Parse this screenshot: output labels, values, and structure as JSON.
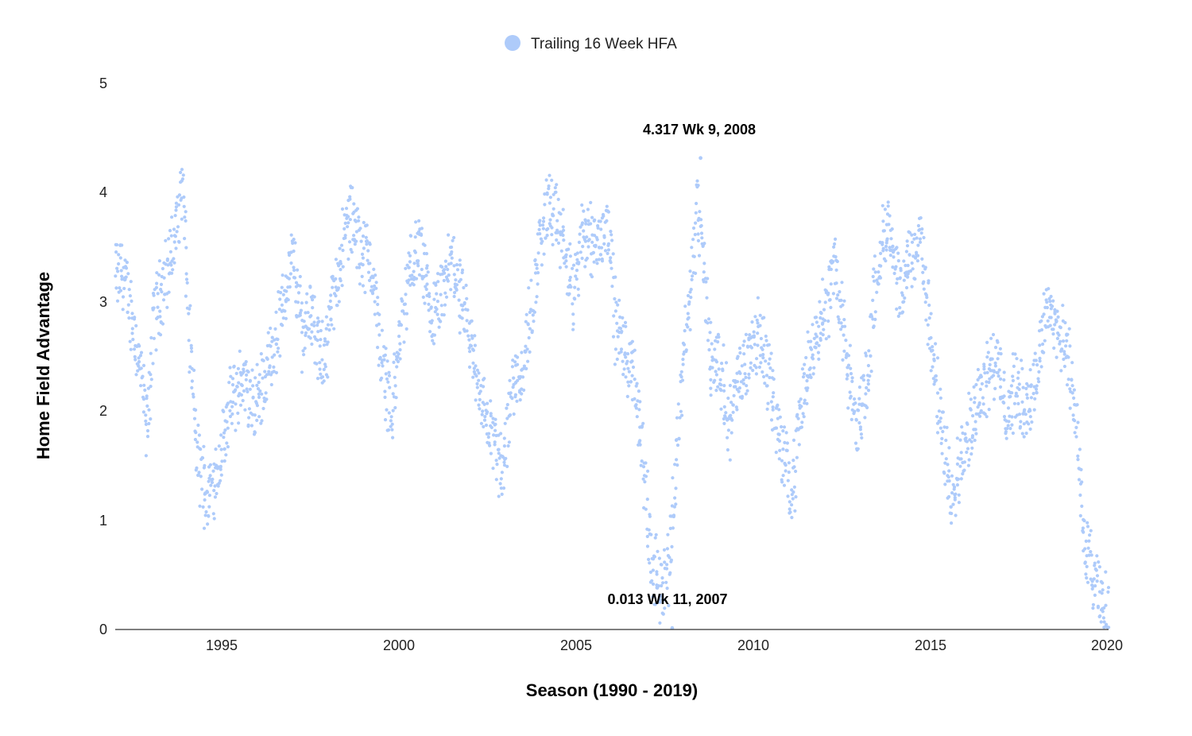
{
  "chart_data": {
    "type": "scatter",
    "xlabel": "Season (1990 - 2019)",
    "ylabel": "Home Field Advantage",
    "xlim": [
      1992,
      2020
    ],
    "ylim": [
      0,
      5
    ],
    "x_ticks": [
      "1995",
      "2000",
      "2005",
      "2010",
      "2015",
      "2020"
    ],
    "y_ticks": [
      "0",
      "1",
      "2",
      "3",
      "4",
      "5"
    ],
    "grid": false,
    "legend": {
      "position": "top-center",
      "entries": [
        "Trailing 16 Week HFA"
      ]
    },
    "series": [
      {
        "name": "Trailing 16 Week HFA",
        "color": "#aecbfa",
        "trend": [
          [
            1992.0,
            3.2
          ],
          [
            1992.2,
            3.3
          ],
          [
            1992.5,
            2.8
          ],
          [
            1992.7,
            2.4
          ],
          [
            1992.9,
            1.8
          ],
          [
            1993.1,
            2.9
          ],
          [
            1993.4,
            3.2
          ],
          [
            1993.7,
            3.6
          ],
          [
            1993.9,
            4.1
          ],
          [
            1994.1,
            2.6
          ],
          [
            1994.3,
            1.6
          ],
          [
            1994.6,
            1.2
          ],
          [
            1994.9,
            1.5
          ],
          [
            1995.2,
            2.0
          ],
          [
            1995.6,
            2.3
          ],
          [
            1995.9,
            2.0
          ],
          [
            1996.2,
            2.3
          ],
          [
            1996.5,
            2.6
          ],
          [
            1996.8,
            3.1
          ],
          [
            1997.0,
            3.4
          ],
          [
            1997.3,
            2.7
          ],
          [
            1997.5,
            3.0
          ],
          [
            1997.8,
            2.4
          ],
          [
            1998.0,
            2.7
          ],
          [
            1998.3,
            3.3
          ],
          [
            1998.6,
            3.8
          ],
          [
            1998.9,
            3.5
          ],
          [
            1999.2,
            3.4
          ],
          [
            1999.5,
            2.5
          ],
          [
            1999.8,
            2.0
          ],
          [
            2000.0,
            2.6
          ],
          [
            2000.3,
            3.3
          ],
          [
            2000.6,
            3.5
          ],
          [
            2000.9,
            2.8
          ],
          [
            2001.2,
            3.0
          ],
          [
            2001.5,
            3.4
          ],
          [
            2001.8,
            2.9
          ],
          [
            2002.1,
            2.5
          ],
          [
            2002.4,
            2.0
          ],
          [
            2002.7,
            1.7
          ],
          [
            2002.9,
            1.4
          ],
          [
            2003.2,
            2.3
          ],
          [
            2003.5,
            2.4
          ],
          [
            2003.8,
            3.1
          ],
          [
            2004.0,
            3.6
          ],
          [
            2004.2,
            3.9
          ],
          [
            2004.6,
            3.6
          ],
          [
            2004.9,
            3.0
          ],
          [
            2005.2,
            3.7
          ],
          [
            2005.6,
            3.5
          ],
          [
            2005.9,
            3.8
          ],
          [
            2006.1,
            2.8
          ],
          [
            2006.4,
            2.5
          ],
          [
            2006.7,
            2.2
          ],
          [
            2006.9,
            1.5
          ],
          [
            2007.1,
            0.6
          ],
          [
            2007.4,
            0.4
          ],
          [
            2007.6,
            0.6
          ],
          [
            2007.8,
            1.4
          ],
          [
            2008.0,
            2.5
          ],
          [
            2008.2,
            3.0
          ],
          [
            2008.4,
            3.9
          ],
          [
            2008.6,
            3.3
          ],
          [
            2008.8,
            2.4
          ],
          [
            2009.0,
            2.5
          ],
          [
            2009.3,
            1.9
          ],
          [
            2009.6,
            2.3
          ],
          [
            2009.9,
            2.6
          ],
          [
            2010.2,
            2.7
          ],
          [
            2010.5,
            2.2
          ],
          [
            2010.8,
            1.6
          ],
          [
            2011.1,
            1.3
          ],
          [
            2011.4,
            2.2
          ],
          [
            2011.8,
            2.8
          ],
          [
            2012.1,
            3.0
          ],
          [
            2012.3,
            3.4
          ],
          [
            2012.6,
            2.5
          ],
          [
            2012.9,
            1.8
          ],
          [
            2013.2,
            2.3
          ],
          [
            2013.5,
            3.4
          ],
          [
            2013.8,
            3.7
          ],
          [
            2014.1,
            3.0
          ],
          [
            2014.4,
            3.4
          ],
          [
            2014.7,
            3.6
          ],
          [
            2015.0,
            2.6
          ],
          [
            2015.3,
            1.8
          ],
          [
            2015.6,
            1.3
          ],
          [
            2015.9,
            1.6
          ],
          [
            2016.2,
            2.0
          ],
          [
            2016.5,
            2.3
          ],
          [
            2016.8,
            2.5
          ],
          [
            2017.1,
            2.0
          ],
          [
            2017.4,
            2.2
          ],
          [
            2017.7,
            2.0
          ],
          [
            2018.0,
            2.4
          ],
          [
            2018.3,
            3.0
          ],
          [
            2018.6,
            2.7
          ],
          [
            2018.9,
            2.4
          ],
          [
            2019.1,
            1.9
          ],
          [
            2019.3,
            0.8
          ],
          [
            2019.6,
            0.4
          ],
          [
            2020.0,
            0.1
          ]
        ]
      }
    ],
    "annotations": [
      {
        "text": "4.317 Wk 9, 2008",
        "x": 2008.5,
        "y": 4.317
      },
      {
        "text": "0.013 Wk 11, 2007",
        "x": 2007.7,
        "y": 0.013
      }
    ]
  }
}
